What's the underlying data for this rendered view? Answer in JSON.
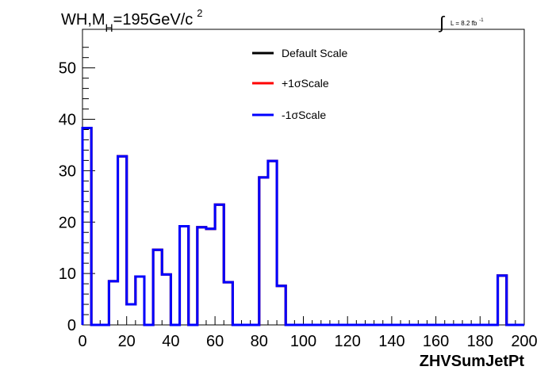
{
  "chart_data": {
    "type": "histogram",
    "title": {
      "main": "WH,M",
      "sub": "H",
      "rest": "=195GeV/c",
      "sup": "2"
    },
    "lumi": {
      "text": "L = 8.2 fb",
      "sup": "-1"
    },
    "xlabel": "ZHVSumJetPt",
    "ylabel": "",
    "xlim": [
      0,
      200
    ],
    "ylim": [
      0,
      57.5
    ],
    "xticks": [
      "0",
      "20",
      "40",
      "60",
      "80",
      "100",
      "120",
      "140",
      "160",
      "180",
      "200"
    ],
    "yticks": [
      "0",
      "10",
      "20",
      "30",
      "40",
      "50"
    ],
    "legend_position": "top-center",
    "bin_edges": [
      0,
      4,
      8,
      12,
      16,
      20,
      24,
      28,
      32,
      36,
      40,
      44,
      48,
      52,
      56,
      60,
      64,
      68,
      72,
      76,
      80,
      84,
      88,
      92,
      96,
      100,
      104,
      108,
      112,
      116,
      120,
      124,
      128,
      132,
      136,
      140,
      144,
      148,
      152,
      156,
      160,
      164,
      168,
      172,
      176,
      180,
      184,
      188,
      192,
      196,
      200
    ],
    "series": [
      {
        "name": "Default Scale",
        "color": "#000000",
        "values": [
          38.3,
          0,
          0,
          8.5,
          32.8,
          4.0,
          9.4,
          0,
          14.6,
          9.8,
          0,
          19.2,
          0,
          19.0,
          18.7,
          23.4,
          8.3,
          0,
          0,
          0,
          28.7,
          31.9,
          7.6,
          0,
          0,
          0,
          0,
          0,
          0,
          0,
          0,
          0,
          0,
          0,
          0,
          0,
          0,
          0,
          0,
          0,
          0,
          0,
          0,
          0,
          0,
          0,
          0,
          9.6,
          0,
          0
        ]
      },
      {
        "name": "+1σScale",
        "color": "#ff0000",
        "values": [
          38.3,
          0,
          0,
          8.5,
          32.8,
          4.0,
          9.4,
          0,
          14.6,
          9.8,
          0,
          19.2,
          0,
          19.0,
          18.7,
          23.4,
          8.3,
          0,
          0,
          0,
          28.7,
          31.9,
          7.6,
          0,
          0,
          0,
          0,
          0,
          0,
          0,
          0,
          0,
          0,
          0,
          0,
          0,
          0,
          0,
          0,
          0,
          0,
          0,
          0,
          0,
          0,
          0,
          0,
          9.6,
          0,
          0
        ]
      },
      {
        "name": "-1σScale",
        "color": "#0000ff",
        "values": [
          38.3,
          0,
          0,
          8.5,
          32.8,
          4.0,
          9.4,
          0,
          14.6,
          9.8,
          0,
          19.2,
          0,
          19.0,
          18.7,
          23.4,
          8.3,
          0,
          0,
          0,
          28.7,
          31.9,
          7.6,
          0,
          0,
          0,
          0,
          0,
          0,
          0,
          0,
          0,
          0,
          0,
          0,
          0,
          0,
          0,
          0,
          0,
          0,
          0,
          0,
          0,
          0,
          0,
          0,
          9.6,
          0,
          0
        ]
      }
    ]
  }
}
